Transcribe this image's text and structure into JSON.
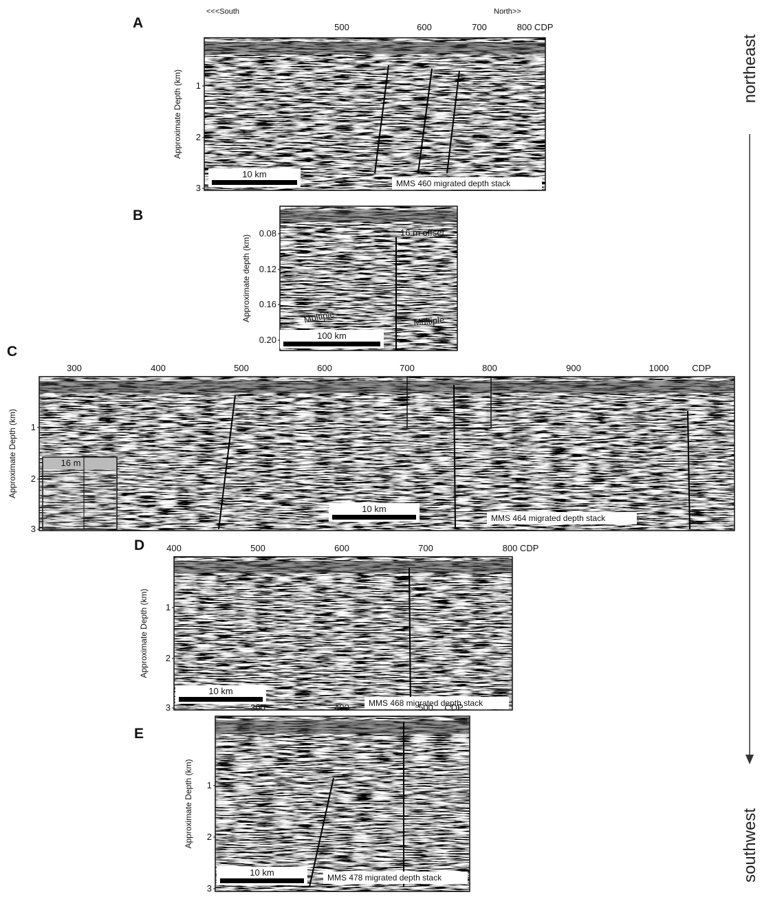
{
  "panels": [
    {
      "label": "A",
      "direction_labels": [
        "<<<South",
        "North>>"
      ],
      "x_ticks": [
        "500",
        "600",
        "700",
        "800 CDP"
      ],
      "y_axis_label": "Approximate Depth (km)",
      "y_ticks": [
        "1",
        "2",
        "3"
      ],
      "scale_bar": "10 km",
      "caption": "MMS 460 migrated depth stack"
    },
    {
      "label": "B",
      "y_axis_label": "Approximate depth (km)",
      "y_ticks": [
        "0.08",
        "0.12",
        "0.16",
        "0.20"
      ],
      "scale_bar": "100 km",
      "annotations": [
        "16 m offset",
        "Multiple",
        "Multiple"
      ]
    },
    {
      "label": "C",
      "x_ticks": [
        "300",
        "400",
        "500",
        "600",
        "700",
        "800",
        "900",
        "1000",
        "CDP"
      ],
      "y_axis_label": "Approximate Depth (km)",
      "y_ticks": [
        "1",
        "2",
        "3"
      ],
      "scale_bar": "10 km",
      "caption": "MMS 464 migrated depth stack",
      "inset_label": "16 m"
    },
    {
      "label": "D",
      "x_ticks": [
        "400",
        "500",
        "600",
        "700",
        "800 CDP"
      ],
      "y_axis_label": "Approximate Depth (km)",
      "y_ticks": [
        "1",
        "2",
        "3"
      ],
      "scale_bar": "10 km",
      "caption": "MMS 468 migrated depth stack"
    },
    {
      "label": "E",
      "x_ticks": [
        "300",
        "400",
        "500",
        "CDP"
      ],
      "y_axis_label": "Approximate Depth (km)",
      "y_ticks": [
        "1",
        "2",
        "3"
      ],
      "scale_bar": "10 km",
      "caption": "MMS 478 migrated depth stack"
    }
  ],
  "orientation": {
    "top": "northeast",
    "bottom": "southwest"
  }
}
